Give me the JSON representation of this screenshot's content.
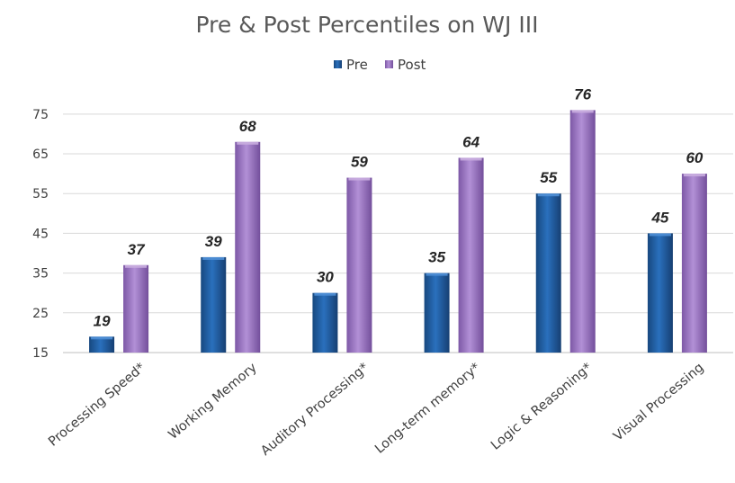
{
  "chart_data": {
    "type": "bar",
    "title": "Pre & Post Percentiles on WJ III",
    "categories": [
      "Processing Speed*",
      "Working Memory",
      "Auditory Processing*",
      "Long-term memory*",
      "Logic & Reasoning*",
      "Visual Processing"
    ],
    "series": [
      {
        "name": "Pre",
        "values": [
          19,
          39,
          30,
          35,
          55,
          45
        ],
        "color": "#1f5fa6"
      },
      {
        "name": "Post",
        "values": [
          37,
          68,
          59,
          64,
          76,
          60
        ],
        "color": "#9b74c2"
      }
    ],
    "yticks": [
      15,
      25,
      35,
      45,
      55,
      65,
      75
    ],
    "ylim": [
      15,
      77
    ],
    "legend_position": "top-center",
    "grid": true,
    "data_labels": true
  }
}
